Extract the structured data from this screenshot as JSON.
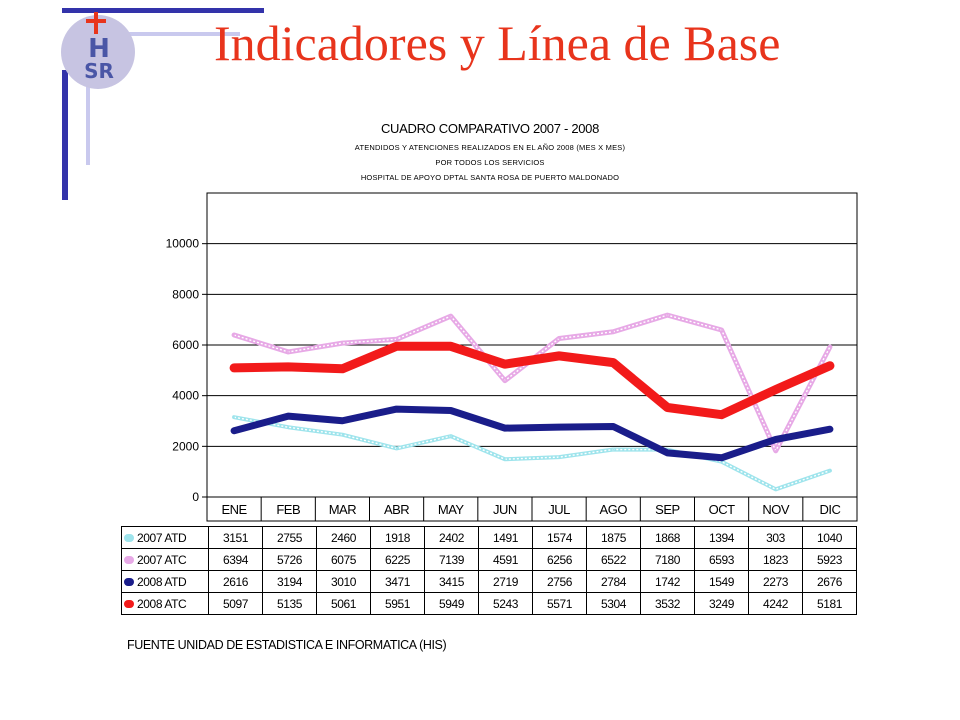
{
  "slide": {
    "title": "Indicadores y Línea de Base"
  },
  "logo": {
    "text_top": "H",
    "text_bottom": "SR"
  },
  "chart_data": {
    "type": "line",
    "title": "CUADRO COMPARATIVO 2007 - 2008",
    "subtitles": [
      "ATENDIDOS Y ATENCIONES REALIZADOS EN EL AÑO 2008 (MES X MES)",
      "POR TODOS LOS SERVICIOS",
      "HOSPITAL DE APOYO DPTAL SANTA ROSA DE PUERTO MALDONADO"
    ],
    "categories": [
      "ENE",
      "FEB",
      "MAR",
      "ABR",
      "MAY",
      "JUN",
      "JUL",
      "AGO",
      "SEP",
      "OCT",
      "NOV",
      "DIC"
    ],
    "y_ticks": [
      0,
      2000,
      4000,
      6000,
      8000,
      10000
    ],
    "ylim": [
      0,
      12000
    ],
    "grid": true,
    "legend": "table-left",
    "series": [
      {
        "name": "2007 ATD",
        "color": "#9ee4ec",
        "values": [
          3151,
          2755,
          2460,
          1918,
          2402,
          1491,
          1574,
          1875,
          1868,
          1394,
          303,
          1040
        ]
      },
      {
        "name": "2007 ATC",
        "color": "#e7a9e6",
        "values": [
          6394,
          5726,
          6075,
          6225,
          7139,
          4591,
          6256,
          6522,
          7180,
          6593,
          1823,
          5923
        ]
      },
      {
        "name": "2008 ATD",
        "color": "#1a1d8a",
        "values": [
          2616,
          3194,
          3010,
          3471,
          3415,
          2719,
          2756,
          2784,
          1742,
          1549,
          2273,
          2676
        ]
      },
      {
        "name": "2008 ATC",
        "color": "#f21a1a",
        "values": [
          5097,
          5135,
          5061,
          5951,
          5949,
          5243,
          5571,
          5304,
          3532,
          3249,
          4242,
          5181
        ]
      }
    ],
    "source": "FUENTE UNIDAD DE ESTADISTICA E INFORMATICA (HIS)"
  }
}
